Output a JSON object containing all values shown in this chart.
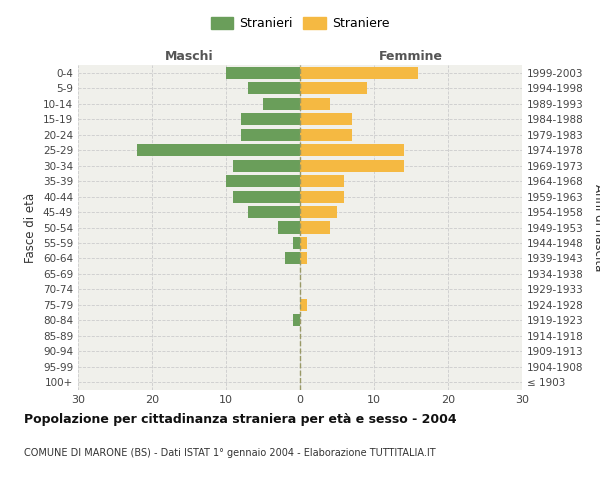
{
  "age_groups": [
    "100+",
    "95-99",
    "90-94",
    "85-89",
    "80-84",
    "75-79",
    "70-74",
    "65-69",
    "60-64",
    "55-59",
    "50-54",
    "45-49",
    "40-44",
    "35-39",
    "30-34",
    "25-29",
    "20-24",
    "15-19",
    "10-14",
    "5-9",
    "0-4"
  ],
  "birth_years": [
    "≤ 1903",
    "1904-1908",
    "1909-1913",
    "1914-1918",
    "1919-1923",
    "1924-1928",
    "1929-1933",
    "1934-1938",
    "1939-1943",
    "1944-1948",
    "1949-1953",
    "1954-1958",
    "1959-1963",
    "1964-1968",
    "1969-1973",
    "1974-1978",
    "1979-1983",
    "1984-1988",
    "1989-1993",
    "1994-1998",
    "1999-2003"
  ],
  "males": [
    0,
    0,
    0,
    0,
    1,
    0,
    0,
    0,
    2,
    1,
    3,
    7,
    9,
    10,
    9,
    22,
    8,
    8,
    5,
    7,
    10
  ],
  "females": [
    0,
    0,
    0,
    0,
    0,
    1,
    0,
    0,
    1,
    1,
    4,
    5,
    6,
    6,
    14,
    14,
    7,
    7,
    4,
    9,
    16
  ],
  "male_color": "#6a9e5a",
  "female_color": "#f5b942",
  "background_color": "#f0f0eb",
  "grid_color": "#cccccc",
  "center_line_color": "#999966",
  "xlim": 30,
  "title": "Popolazione per cittadinanza straniera per età e sesso - 2004",
  "subtitle": "COMUNE DI MARONE (BS) - Dati ISTAT 1° gennaio 2004 - Elaborazione TUTTITALIA.IT",
  "ylabel_left": "Fasce di età",
  "ylabel_right": "Anni di nascita",
  "legend_male": "Stranieri",
  "legend_female": "Straniere",
  "header_left": "Maschi",
  "header_right": "Femmine",
  "xticks": [
    -30,
    -20,
    -10,
    0,
    10,
    20,
    30
  ],
  "xtick_labels": [
    "30",
    "20",
    "10",
    "0",
    "10",
    "20",
    "30"
  ]
}
